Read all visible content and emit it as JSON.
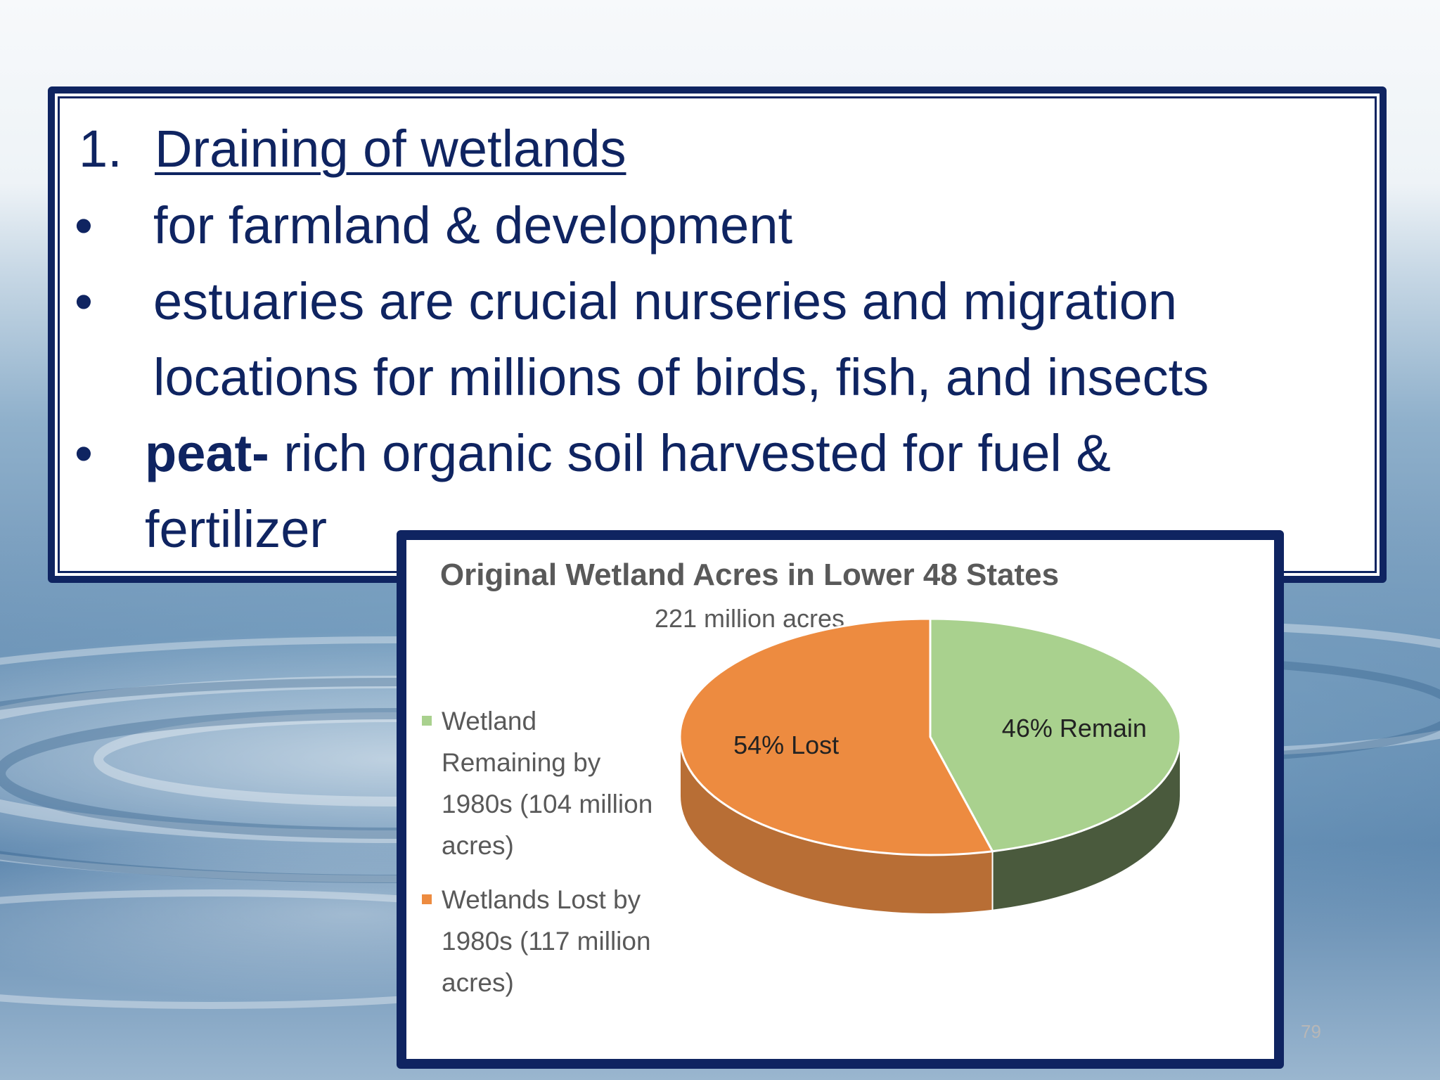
{
  "slide": {
    "heading_number": "1.",
    "heading": "Draining of wetlands",
    "bullet_symbol": "•",
    "bullets": [
      {
        "lines": [
          "for farmland & development"
        ]
      },
      {
        "lines": [
          "estuaries are crucial nurseries and migration",
          "locations for millions of birds, fish, and insects"
        ]
      },
      {
        "bold": "peat-",
        "rest": " rich organic soil harvested for fuel &",
        "continuation": "fertilizer"
      }
    ],
    "page_number": "79"
  },
  "chart_data": {
    "type": "pie",
    "title": "Original Wetland Acres in Lower 48 States",
    "subtitle": "221 million acres",
    "slices": [
      {
        "legend_lines": [
          "Wetland",
          "Remaining by",
          "1980s (104 million",
          "acres)"
        ],
        "label": "46% Remain",
        "value": 46,
        "color": "#a9d18e",
        "side_color": "#4a5a3d"
      },
      {
        "legend_lines": [
          "Wetlands Lost by",
          "1980s (117 million",
          "acres)"
        ],
        "label": "54% Lost",
        "value": 54,
        "color": "#ed8b40",
        "side_color": "#b86e35"
      }
    ],
    "legend_position": "left",
    "style": "3d"
  }
}
